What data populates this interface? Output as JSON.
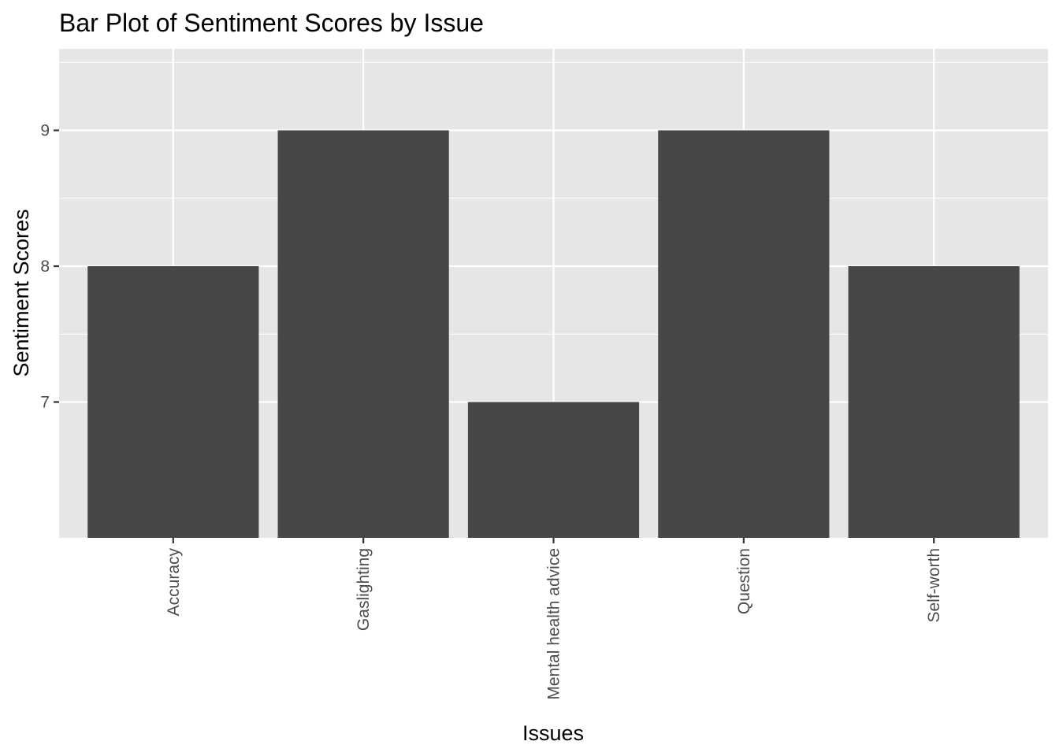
{
  "chart_data": {
    "type": "bar",
    "title": "Bar Plot of Sentiment Scores by Issue",
    "xlabel": "Issues",
    "ylabel": "Sentiment Scores",
    "categories": [
      "Accuracy",
      "Gaslighting",
      "Mental health advice",
      "Question",
      "Self-worth"
    ],
    "values": [
      8,
      9,
      7,
      9,
      8
    ],
    "ylim": [
      6,
      9.6
    ],
    "yticks": [
      7,
      8,
      9
    ],
    "ytick_labels": [
      "7",
      "8",
      "9"
    ],
    "grid": true,
    "legend": "none",
    "colors": {
      "bar": "#474747",
      "panel": "#e6e6e6",
      "grid": "#ffffff",
      "tick": "#333333"
    }
  }
}
